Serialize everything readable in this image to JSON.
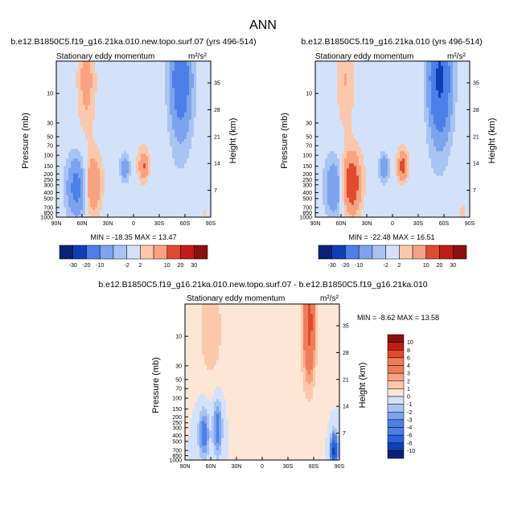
{
  "page_title": "ANN",
  "colors": {
    "neg": [
      "#08217a",
      "#0e3fb3",
      "#2a5fe0",
      "#4d7fe8",
      "#7da3ee",
      "#a9c4f3",
      "#d3e2fa"
    ],
    "pos": [
      "#fde6d6",
      "#fbc8ab",
      "#f7a381",
      "#f07c58",
      "#e04a2e",
      "#c21d14",
      "#8b0f0f"
    ]
  },
  "chart_data": [
    {
      "type": "heatmap",
      "title": "b.e12.B1850C5.f19_g16.21ka.010.new.topo.surf.07 (yrs 496-514)",
      "subtitle": "Stationary eddy momentum",
      "units": "m²/s²",
      "ylabel": "Pressure (mb)",
      "ylabel_right": "Height (km)",
      "xticks": [
        "90N",
        "60N",
        "30N",
        "0",
        "30S",
        "60S",
        "90S"
      ],
      "yticks": [
        "10",
        "30",
        "50",
        "70",
        "100",
        "150",
        "200",
        "250",
        "300",
        "400",
        "500",
        "700",
        "850",
        "1000"
      ],
      "ylim_mb": [
        1000,
        3
      ],
      "height_ticks": [
        "35",
        "28",
        "21",
        "14",
        "7"
      ],
      "min": -18.35,
      "max": 13.47,
      "stats_text": "MIN = -18.35   MAX = 13.47",
      "levels": [
        -30,
        -20,
        -10,
        -5,
        -2,
        2,
        5,
        10,
        20,
        30
      ],
      "colorbar_labels": [
        "-30",
        "-20",
        "-10",
        "-2",
        "2",
        "10",
        "20",
        "30"
      ],
      "features": [
        {
          "lat": 66,
          "p": 330,
          "amp": -13,
          "wl": 12,
          "wp": 0.28
        },
        {
          "lat": 48,
          "p": 300,
          "amp": 11,
          "wl": 10,
          "wp": 0.28
        },
        {
          "lat": 10,
          "p": 155,
          "amp": -9,
          "wl": 6,
          "wp": 0.14
        },
        {
          "lat": -12,
          "p": 155,
          "amp": 10,
          "wl": 6,
          "wp": 0.14
        },
        {
          "lat": -55,
          "p": 6,
          "amp": -16,
          "wl": 13,
          "wp": 0.55
        },
        {
          "lat": 55,
          "p": 6,
          "amp": 7,
          "wl": 10,
          "wp": 0.45
        },
        {
          "lat": 0,
          "p": 40,
          "amp": 1.5,
          "wl": 35,
          "wp": 0.6
        },
        {
          "lat": -30,
          "p": 500,
          "amp": -1.5,
          "wl": 30,
          "wp": 0.4
        },
        {
          "lat": -82,
          "p": 900,
          "amp": 2.5,
          "wl": 4,
          "wp": 0.1
        }
      ]
    },
    {
      "type": "heatmap",
      "title": "b.e12.B1850C5.f19_g16.21ka.010 (yrs 496-514)",
      "subtitle": "Stationary eddy momentum",
      "units": "m²/s²",
      "ylabel": "Pressure (mb)",
      "ylabel_right": "Height (km)",
      "xticks": [
        "90N",
        "60N",
        "30N",
        "0",
        "30S",
        "60S",
        "90S"
      ],
      "yticks": [
        "10",
        "30",
        "50",
        "70",
        "100",
        "150",
        "200",
        "250",
        "300",
        "400",
        "500",
        "700",
        "850",
        "1000"
      ],
      "ylim_mb": [
        1000,
        3
      ],
      "height_ticks": [
        "35",
        "28",
        "21",
        "14",
        "7"
      ],
      "min": -22.48,
      "max": 16.51,
      "stats_text": "MIN = -22.48   MAX = 16.51",
      "levels": [
        -30,
        -20,
        -10,
        -5,
        -2,
        2,
        5,
        10,
        20,
        30
      ],
      "colorbar_labels": [
        "-30",
        "-20",
        "-10",
        "-2",
        "2",
        "10",
        "20",
        "30"
      ],
      "features": [
        {
          "lat": 68,
          "p": 330,
          "amp": -10,
          "wl": 11,
          "wp": 0.28
        },
        {
          "lat": 48,
          "p": 290,
          "amp": 16,
          "wl": 11,
          "wp": 0.28
        },
        {
          "lat": 10,
          "p": 155,
          "amp": -10,
          "wl": 6,
          "wp": 0.14
        },
        {
          "lat": -12,
          "p": 155,
          "amp": 12,
          "wl": 6,
          "wp": 0.14
        },
        {
          "lat": -55,
          "p": 6,
          "amp": -22,
          "wl": 13,
          "wp": 0.55
        },
        {
          "lat": 55,
          "p": 6,
          "amp": 5,
          "wl": 10,
          "wp": 0.45
        },
        {
          "lat": 0,
          "p": 40,
          "amp": 1.5,
          "wl": 35,
          "wp": 0.6
        },
        {
          "lat": -30,
          "p": 500,
          "amp": -1.5,
          "wl": 30,
          "wp": 0.4
        },
        {
          "lat": -82,
          "p": 850,
          "amp": 3,
          "wl": 4,
          "wp": 0.12
        }
      ]
    },
    {
      "type": "heatmap",
      "title": "b.e12.B1850C5.f19_g16.21ka.010.new.topo.surf.07 - b.e12.B1850C5.f19_g16.21ka.010",
      "subtitle": "Stationary eddy momentum",
      "units": "m²/s²",
      "ylabel": "Pressure (mb)",
      "ylabel_right": "Height (km)",
      "xticks": [
        "90N",
        "60N",
        "30N",
        "0",
        "30S",
        "60S",
        "90S"
      ],
      "yticks": [
        "10",
        "30",
        "50",
        "70",
        "100",
        "150",
        "200",
        "250",
        "300",
        "400",
        "500",
        "700",
        "850",
        "1000"
      ],
      "ylim_mb": [
        1000,
        3
      ],
      "height_ticks": [
        "35",
        "28",
        "21",
        "14",
        "7"
      ],
      "min": -8.62,
      "max": 13.58,
      "stats_text": "MIN = -8.62   MAX = 13.58",
      "levels": [
        -10,
        -8,
        -6,
        -4,
        -3,
        -2,
        -1,
        0,
        1,
        2,
        3,
        4,
        6,
        8,
        10
      ],
      "colorbar_labels": [
        "10",
        "8",
        "6",
        "4",
        "3",
        "2",
        "1",
        "0",
        "-1",
        "-2",
        "-3",
        "-4",
        "-6",
        "-8",
        "-10"
      ],
      "features": [
        {
          "lat": 68,
          "p": 380,
          "amp": -4,
          "wl": 6,
          "wp": 0.22
        },
        {
          "lat": 52,
          "p": 300,
          "amp": -4,
          "wl": 5,
          "wp": 0.25
        },
        {
          "lat": 60,
          "p": 8,
          "amp": 2,
          "wl": 14,
          "wp": 0.45
        },
        {
          "lat": -55,
          "p": 6,
          "amp": 7,
          "wl": 7,
          "wp": 0.5
        },
        {
          "lat": -20,
          "p": 60,
          "amp": 0.8,
          "wl": 30,
          "wp": 0.7
        },
        {
          "lat": -84,
          "p": 700,
          "amp": -9,
          "wl": 4,
          "wp": 0.15
        }
      ]
    }
  ]
}
